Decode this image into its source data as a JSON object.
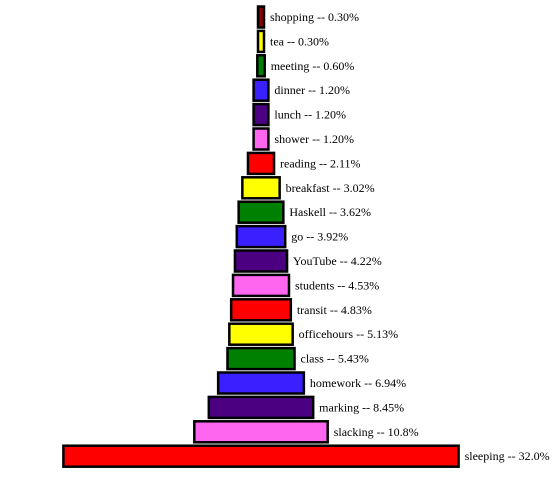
{
  "chart_data": {
    "type": "bar",
    "orientation": "horizontal-centered",
    "categories": [
      "shopping",
      "tea",
      "meeting",
      "dinner",
      "lunch",
      "shower",
      "reading",
      "breakfast",
      "Haskell",
      "go",
      "YouTube",
      "students",
      "transit",
      "officehours",
      "class",
      "homework",
      "marking",
      "slacking",
      "sleeping"
    ],
    "values": [
      0.3,
      0.3,
      0.6,
      1.2,
      1.2,
      1.2,
      2.11,
      3.02,
      3.62,
      3.92,
      4.22,
      4.53,
      4.83,
      5.13,
      5.43,
      6.94,
      8.45,
      10.8,
      32.0
    ],
    "labels": [
      "shopping -- 0.30%",
      "tea -- 0.30%",
      "meeting -- 0.60%",
      "dinner -- 1.20%",
      "lunch -- 1.20%",
      "shower -- 1.20%",
      "reading -- 2.11%",
      "breakfast -- 3.02%",
      "Haskell -- 3.62%",
      "go -- 3.92%",
      "YouTube -- 4.22%",
      "students -- 4.53%",
      "transit -- 4.83%",
      "officehours -- 5.13%",
      "class -- 5.43%",
      "homework -- 6.94%",
      "marking -- 8.45%",
      "slacking -- 10.8%",
      "sleeping -- 32.0%"
    ],
    "colors": [
      "#8b0000",
      "#ffff00",
      "#008000",
      "#3a1fff",
      "#4b0082",
      "#ff66f0",
      "#ff0000",
      "#ffff00",
      "#008000",
      "#3a1fff",
      "#4b0082",
      "#ff66f0",
      "#ff0000",
      "#ffff00",
      "#008000",
      "#3a1fff",
      "#4b0082",
      "#ff66f0",
      "#ff0000"
    ],
    "title": "",
    "xlabel": "",
    "ylabel": "",
    "grid": false,
    "legend": "none"
  }
}
